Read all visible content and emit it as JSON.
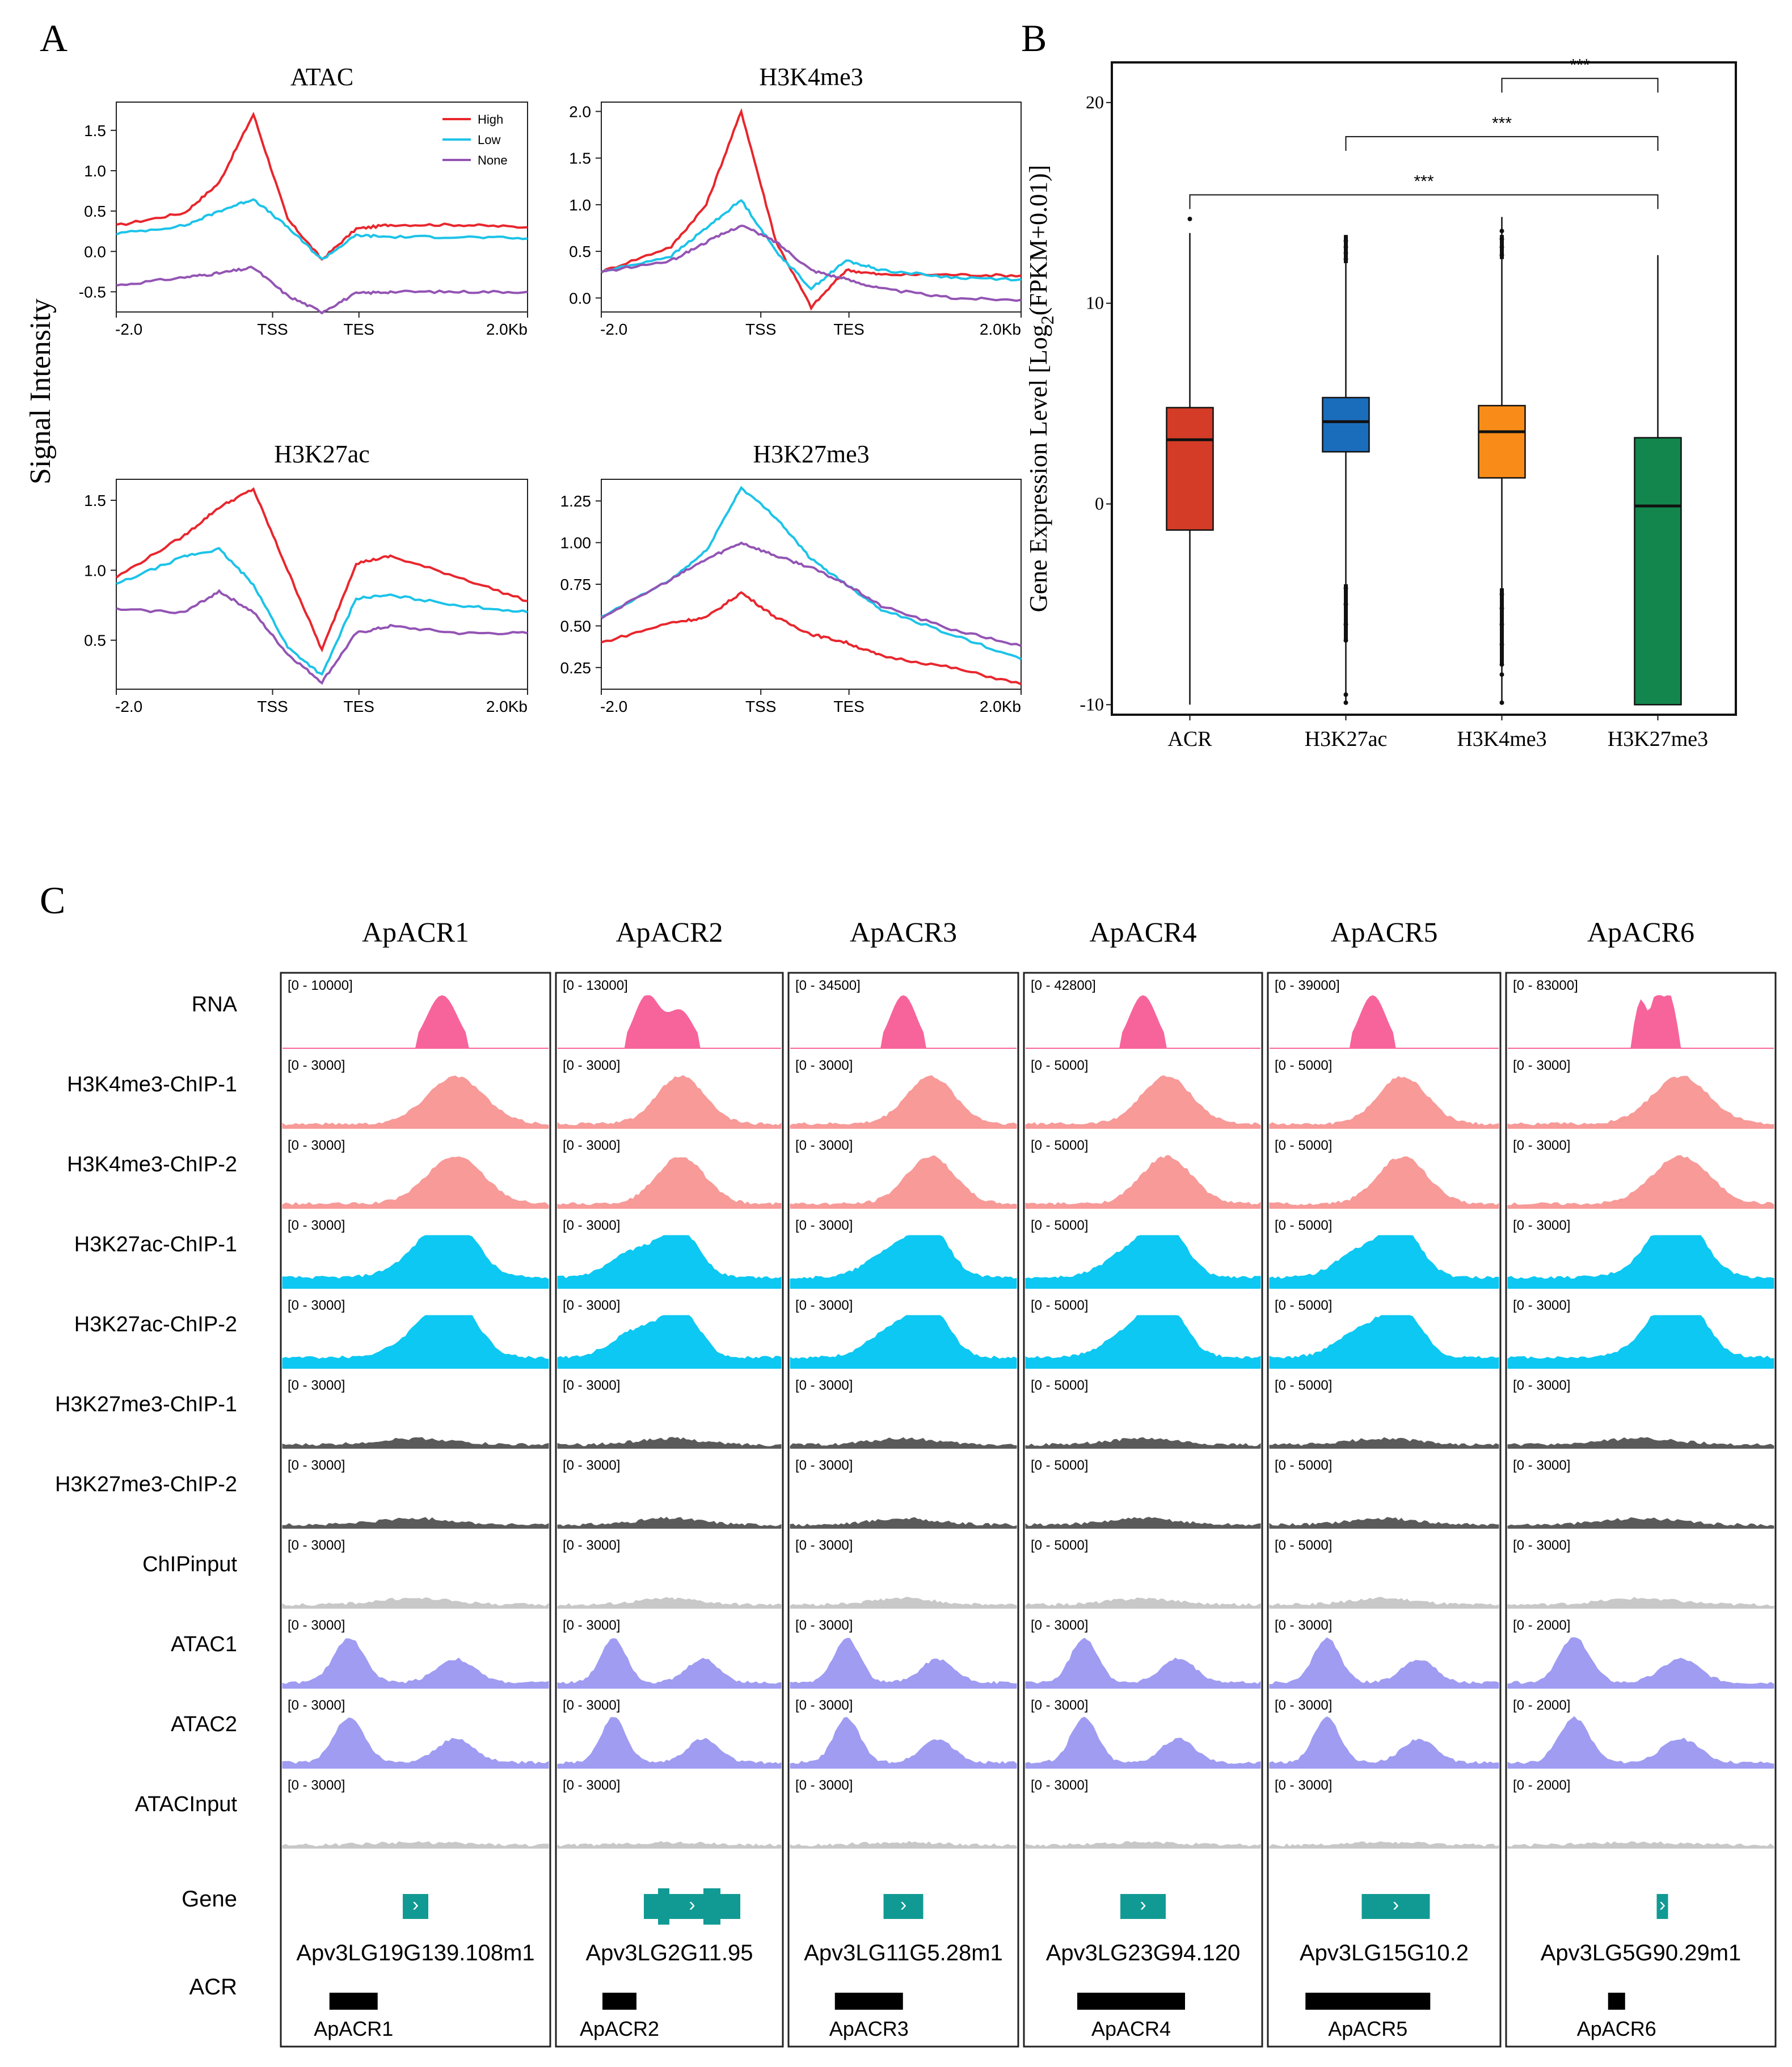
{
  "panels": {
    "a": "A",
    "b": "B",
    "c": "C"
  },
  "panel_a": {
    "ylabel": "Signal Intensity",
    "xticks": [
      "-2.0",
      "TSS",
      "TES",
      "2.0Kb"
    ],
    "legend": [
      "High",
      "Low",
      "None"
    ],
    "colors": {
      "High": "#e8262d",
      "Low": "#1cc3e8",
      "None": "#9354b4"
    }
  },
  "chart_data": [
    {
      "type": "line",
      "title": "ATAC",
      "ylim": [
        -0.75,
        1.85
      ],
      "yticks": [
        "1.5",
        "1.0",
        "0.5",
        "0.0",
        "-0.5"
      ],
      "ytick_values": [
        1.5,
        1.0,
        0.5,
        0.0,
        -0.5
      ],
      "xlabel": "",
      "ylabel": "Signal Intensity",
      "legend_position": "top-right",
      "x": [
        -2.0,
        -1.0,
        -0.5,
        0.0,
        0.5,
        1.0,
        1.5,
        2.0,
        3.0,
        4.0
      ],
      "series": [
        {
          "name": "High",
          "values": [
            0.32,
            0.48,
            0.85,
            1.7,
            0.4,
            -0.1,
            0.28,
            0.33,
            0.33,
            0.3
          ]
        },
        {
          "name": "Low",
          "values": [
            0.22,
            0.32,
            0.5,
            0.65,
            0.3,
            -0.1,
            0.2,
            0.18,
            0.18,
            0.16
          ]
        },
        {
          "name": "None",
          "values": [
            -0.42,
            -0.32,
            -0.27,
            -0.2,
            -0.55,
            -0.75,
            -0.52,
            -0.5,
            -0.5,
            -0.5
          ]
        }
      ]
    },
    {
      "type": "line",
      "title": "H3K4me3",
      "ylim": [
        -0.15,
        2.1
      ],
      "yticks": [
        "2.0",
        "1.5",
        "1.0",
        "0.5",
        "0.0"
      ],
      "ytick_values": [
        2.0,
        1.5,
        1.0,
        0.5,
        0.0
      ],
      "x": [
        -2.0,
        -1.0,
        -0.5,
        0.0,
        0.5,
        1.0,
        1.5,
        2.0,
        3.0,
        4.0
      ],
      "series": [
        {
          "name": "High",
          "values": [
            0.28,
            0.55,
            1.0,
            2.0,
            0.6,
            -0.1,
            0.3,
            0.25,
            0.25,
            0.24
          ]
        },
        {
          "name": "Low",
          "values": [
            0.28,
            0.45,
            0.75,
            1.05,
            0.5,
            0.1,
            0.4,
            0.3,
            0.22,
            0.2
          ]
        },
        {
          "name": "None",
          "values": [
            0.28,
            0.4,
            0.6,
            0.78,
            0.6,
            0.3,
            0.2,
            0.1,
            0.0,
            -0.02
          ]
        }
      ]
    },
    {
      "type": "line",
      "title": "H3K27ac",
      "ylim": [
        0.15,
        1.65
      ],
      "yticks": [
        "1.5",
        "1.0",
        "0.5"
      ],
      "ytick_values": [
        1.5,
        1.0,
        0.5
      ],
      "x": [
        -2.0,
        -1.0,
        -0.5,
        0.0,
        0.5,
        1.0,
        1.5,
        2.0,
        3.0,
        4.0
      ],
      "series": [
        {
          "name": "High",
          "values": [
            0.95,
            1.25,
            1.45,
            1.58,
            1.0,
            0.43,
            1.05,
            1.1,
            0.95,
            0.78
          ]
        },
        {
          "name": "Low",
          "values": [
            0.9,
            1.1,
            1.15,
            0.9,
            0.45,
            0.25,
            0.8,
            0.82,
            0.75,
            0.7
          ]
        },
        {
          "name": "None",
          "values": [
            0.72,
            0.7,
            0.85,
            0.7,
            0.4,
            0.2,
            0.55,
            0.6,
            0.55,
            0.55
          ]
        }
      ]
    },
    {
      "type": "line",
      "title": "H3K27me3",
      "ylim": [
        0.12,
        1.38
      ],
      "yticks": [
        "1.25",
        "1.00",
        "0.75",
        "0.50",
        "0.25"
      ],
      "ytick_values": [
        1.25,
        1.0,
        0.75,
        0.5,
        0.25
      ],
      "x": [
        -2.0,
        -1.0,
        -0.5,
        0.0,
        0.5,
        1.0,
        1.5,
        2.0,
        3.0,
        4.0
      ],
      "series": [
        {
          "name": "High",
          "values": [
            0.4,
            0.52,
            0.55,
            0.7,
            0.55,
            0.45,
            0.4,
            0.32,
            0.25,
            0.15
          ]
        },
        {
          "name": "Low",
          "values": [
            0.55,
            0.78,
            0.95,
            1.33,
            1.15,
            0.9,
            0.75,
            0.6,
            0.45,
            0.3
          ]
        },
        {
          "name": "None",
          "values": [
            0.55,
            0.78,
            0.9,
            1.0,
            0.92,
            0.85,
            0.75,
            0.62,
            0.48,
            0.38
          ]
        }
      ]
    },
    {
      "type": "boxplot",
      "ylabel_pre": "Gene Expression Level [Log",
      "ylabel_sub": "2",
      "ylabel_post": "(FPKM+0.01)]",
      "ylim": [
        -10.5,
        22
      ],
      "yticks": [
        "20",
        "10",
        "0",
        "-10"
      ],
      "ytick_values": [
        20,
        10,
        0,
        -10
      ],
      "categories": [
        "ACR",
        "H3K27ac",
        "H3K4me3",
        "H3K27me3"
      ],
      "colors": [
        "#d43c27",
        "#1a6dbb",
        "#f98c18",
        "#12864c"
      ],
      "boxes": [
        {
          "q1": -1.3,
          "median": 3.2,
          "q3": 4.8,
          "wlow": -10.0,
          "whigh": 13.5,
          "outliers": [
            14.2
          ]
        },
        {
          "q1": 2.6,
          "median": 4.1,
          "q3": 5.3,
          "wlow": -10.0,
          "whigh": 13.4,
          "outliers": [
            12.2,
            12.5,
            12.8,
            13.1,
            -4.2,
            -5.0,
            -6.0,
            -6.8,
            -9.5,
            -9.9
          ]
        },
        {
          "q1": 1.3,
          "median": 3.6,
          "q3": 4.9,
          "wlow": -10.0,
          "whigh": 14.3,
          "outliers": [
            12.4,
            12.8,
            13.2,
            13.6,
            -4.5,
            -5.2,
            -6.0,
            -7.0,
            -8.0,
            -8.5,
            -9.9
          ]
        },
        {
          "q1": -10.0,
          "median": -0.1,
          "q3": 3.3,
          "wlow": -10.0,
          "whigh": 12.4,
          "outliers": []
        }
      ],
      "significance": [
        {
          "from": "H3K4me3",
          "to": "H3K27me3",
          "label": "***",
          "y": 21.2
        },
        {
          "from": "H3K27ac",
          "to": "H3K27me3",
          "label": "***",
          "y": 18.3
        },
        {
          "from": "ACR",
          "to": "H3K27me3",
          "label": "***",
          "y": 15.4
        }
      ]
    },
    {
      "type": "genome_tracks",
      "columns": [
        "ApACR1",
        "ApACR2",
        "ApACR3",
        "ApACR4",
        "ApACR5",
        "ApACR6"
      ],
      "tracks": [
        {
          "name": "RNA",
          "color": "#f7649b",
          "ranges": [
            "[0 - 10000]",
            "[0 - 13000]",
            "[0 - 34500]",
            "[0 - 42800]",
            "[0 - 39000]",
            "[0 - 83000]"
          ]
        },
        {
          "name": "H3K4me3-ChIP-1",
          "color": "#f79a98",
          "ranges": [
            "[0 - 3000]",
            "[0 - 3000]",
            "[0 - 3000]",
            "[0 - 5000]",
            "[0 - 5000]",
            "[0 - 3000]"
          ]
        },
        {
          "name": "H3K4me3-ChIP-2",
          "color": "#f79a98",
          "ranges": [
            "[0 - 3000]",
            "[0 - 3000]",
            "[0 - 3000]",
            "[0 - 5000]",
            "[0 - 5000]",
            "[0 - 3000]"
          ]
        },
        {
          "name": "H3K27ac-ChIP-1",
          "color": "#0cc8f2",
          "ranges": [
            "[0 - 3000]",
            "[0 - 3000]",
            "[0 - 3000]",
            "[0 - 5000]",
            "[0 - 5000]",
            "[0 - 3000]"
          ]
        },
        {
          "name": "H3K27ac-ChIP-2",
          "color": "#0cc8f2",
          "ranges": [
            "[0 - 3000]",
            "[0 - 3000]",
            "[0 - 3000]",
            "[0 - 5000]",
            "[0 - 5000]",
            "[0 - 3000]"
          ]
        },
        {
          "name": "H3K27me3-ChIP-1",
          "color": "#5a5a5a",
          "ranges": [
            "[0 - 3000]",
            "[0 - 3000]",
            "[0 - 3000]",
            "[0 - 5000]",
            "[0 - 5000]",
            "[0 - 3000]"
          ]
        },
        {
          "name": "H3K27me3-ChIP-2",
          "color": "#5a5a5a",
          "ranges": [
            "[0 - 3000]",
            "[0 - 3000]",
            "[0 - 3000]",
            "[0 - 5000]",
            "[0 - 5000]",
            "[0 - 3000]"
          ]
        },
        {
          "name": "ChIPinput",
          "color": "#c8c8c8",
          "ranges": [
            "[0 - 3000]",
            "[0 - 3000]",
            "[0 - 3000]",
            "[0 - 5000]",
            "[0 - 5000]",
            "[0 - 3000]"
          ]
        },
        {
          "name": "ATAC1",
          "color": "#9f9cf2",
          "ranges": [
            "[0 - 3000]",
            "[0 - 3000]",
            "[0 - 3000]",
            "[0 - 3000]",
            "[0 - 3000]",
            "[0 - 2000]"
          ]
        },
        {
          "name": "ATAC2",
          "color": "#9f9cf2",
          "ranges": [
            "[0 - 3000]",
            "[0 - 3000]",
            "[0 - 3000]",
            "[0 - 3000]",
            "[0 - 3000]",
            "[0 - 2000]"
          ]
        },
        {
          "name": "ATACInput",
          "color": "#c8c8c8",
          "ranges": [
            "[0 - 3000]",
            "[0 - 3000]",
            "[0 - 3000]",
            "[0 - 3000]",
            "[0 - 3000]",
            "[0 - 2000]"
          ]
        }
      ],
      "gene_track_label": "Gene",
      "acr_track_label": "ACR",
      "gene_color": "#119a94",
      "genes": [
        "Apv3LG19G139.108m1",
        "Apv3LG2G11.95",
        "Apv3LG11G5.28m1",
        "Apv3LG23G94.120",
        "Apv3LG15G10.2",
        "Apv3LG5G90.29m1"
      ],
      "acrs": [
        "ApACR1",
        "ApACR2",
        "ApACR3",
        "ApACR4",
        "ApACR5",
        "ApACR6"
      ]
    }
  ]
}
